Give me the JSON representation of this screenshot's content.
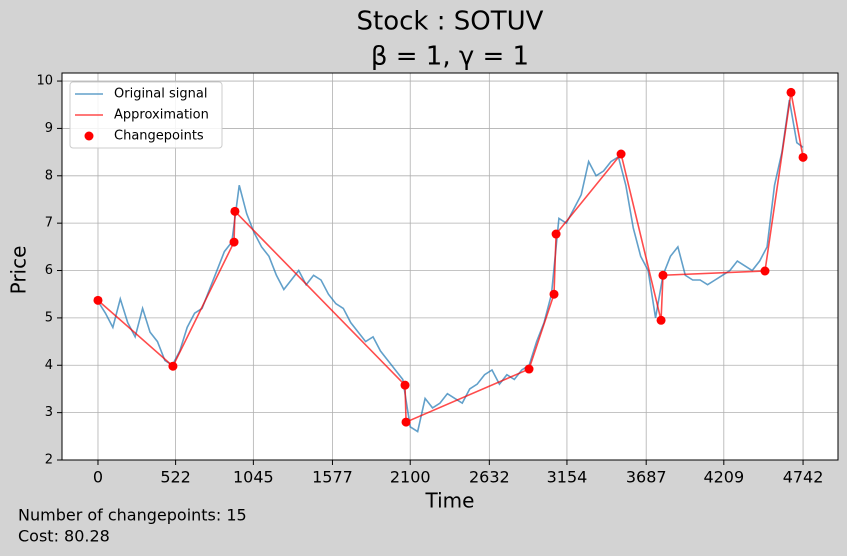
{
  "chart_data": {
    "type": "line",
    "title": "Stock : SOTUV",
    "subtitle": "β = 1, γ = 1",
    "xlabel": "Time",
    "ylabel": "Price",
    "xlim": [
      -242,
      4977
    ],
    "ylim": [
      2,
      10.17
    ],
    "xticks": [
      0,
      522,
      1045,
      1577,
      2100,
      2632,
      3154,
      3687,
      4209,
      4742
    ],
    "yticks": [
      2,
      3,
      4,
      5,
      6,
      7,
      8,
      9,
      10
    ],
    "grid": true,
    "legend": "upper left",
    "series": [
      {
        "name": "Original signal",
        "type": "line",
        "color": "#1f77b4",
        "x": [
          0,
          50,
          100,
          150,
          200,
          250,
          300,
          350,
          400,
          450,
          500,
          550,
          600,
          650,
          700,
          750,
          800,
          850,
          900,
          950,
          1000,
          1050,
          1100,
          1150,
          1200,
          1250,
          1300,
          1350,
          1400,
          1450,
          1500,
          1550,
          1600,
          1650,
          1700,
          1750,
          1800,
          1850,
          1900,
          1950,
          2000,
          2050,
          2100,
          2150,
          2200,
          2250,
          2300,
          2350,
          2400,
          2450,
          2500,
          2550,
          2600,
          2650,
          2700,
          2750,
          2800,
          2850,
          2900,
          2950,
          3000,
          3050,
          3100,
          3150,
          3200,
          3250,
          3300,
          3350,
          3400,
          3450,
          3500,
          3550,
          3600,
          3650,
          3700,
          3750,
          3800,
          3850,
          3900,
          3950,
          4000,
          4050,
          4100,
          4150,
          4200,
          4250,
          4300,
          4350,
          4400,
          4450,
          4500,
          4550,
          4600,
          4650,
          4700,
          4742
        ],
        "values": [
          5.35,
          5.1,
          4.8,
          5.4,
          4.9,
          4.6,
          5.2,
          4.7,
          4.5,
          4.1,
          4.0,
          4.3,
          4.8,
          5.1,
          5.2,
          5.6,
          6.0,
          6.4,
          6.6,
          7.8,
          7.2,
          6.8,
          6.5,
          6.3,
          5.9,
          5.6,
          5.8,
          6.0,
          5.7,
          5.9,
          5.8,
          5.5,
          5.3,
          5.2,
          4.9,
          4.7,
          4.5,
          4.6,
          4.3,
          4.1,
          3.9,
          3.7,
          2.7,
          2.6,
          3.3,
          3.1,
          3.2,
          3.4,
          3.3,
          3.2,
          3.5,
          3.6,
          3.8,
          3.9,
          3.6,
          3.8,
          3.7,
          3.9,
          4.0,
          4.5,
          4.9,
          5.5,
          7.1,
          7.0,
          7.3,
          7.6,
          8.3,
          8.0,
          8.1,
          8.3,
          8.4,
          7.8,
          6.9,
          6.3,
          6.0,
          5.0,
          5.9,
          6.3,
          6.5,
          5.9,
          5.8,
          5.8,
          5.7,
          5.8,
          5.9,
          6.0,
          6.2,
          6.1,
          6.0,
          6.2,
          6.5,
          7.8,
          8.5,
          9.6,
          8.7,
          8.6
        ]
      },
      {
        "name": "Approximation",
        "type": "line",
        "color": "#ff0000",
        "x": [
          0,
          504,
          915,
          921,
          2065,
          2072,
          2899,
          3067,
          3081,
          3518,
          3787,
          3800,
          4486,
          4661,
          4742
        ],
        "values": [
          5.37,
          3.98,
          6.6,
          7.25,
          3.58,
          2.8,
          3.92,
          5.5,
          6.77,
          8.46,
          4.95,
          5.9,
          5.99,
          9.76,
          8.39
        ]
      },
      {
        "name": "Changepoints",
        "type": "scatter",
        "color": "#ff0000",
        "x": [
          0,
          504,
          915,
          921,
          2065,
          2072,
          2899,
          3067,
          3081,
          3518,
          3787,
          3800,
          4486,
          4661,
          4742
        ],
        "values": [
          5.37,
          3.98,
          6.6,
          7.25,
          3.58,
          2.8,
          3.92,
          5.5,
          6.77,
          8.46,
          4.95,
          5.9,
          5.99,
          9.76,
          8.39
        ]
      }
    ],
    "annotations": [
      "Number of changepoints: 15",
      "Cost: 80.28"
    ]
  }
}
